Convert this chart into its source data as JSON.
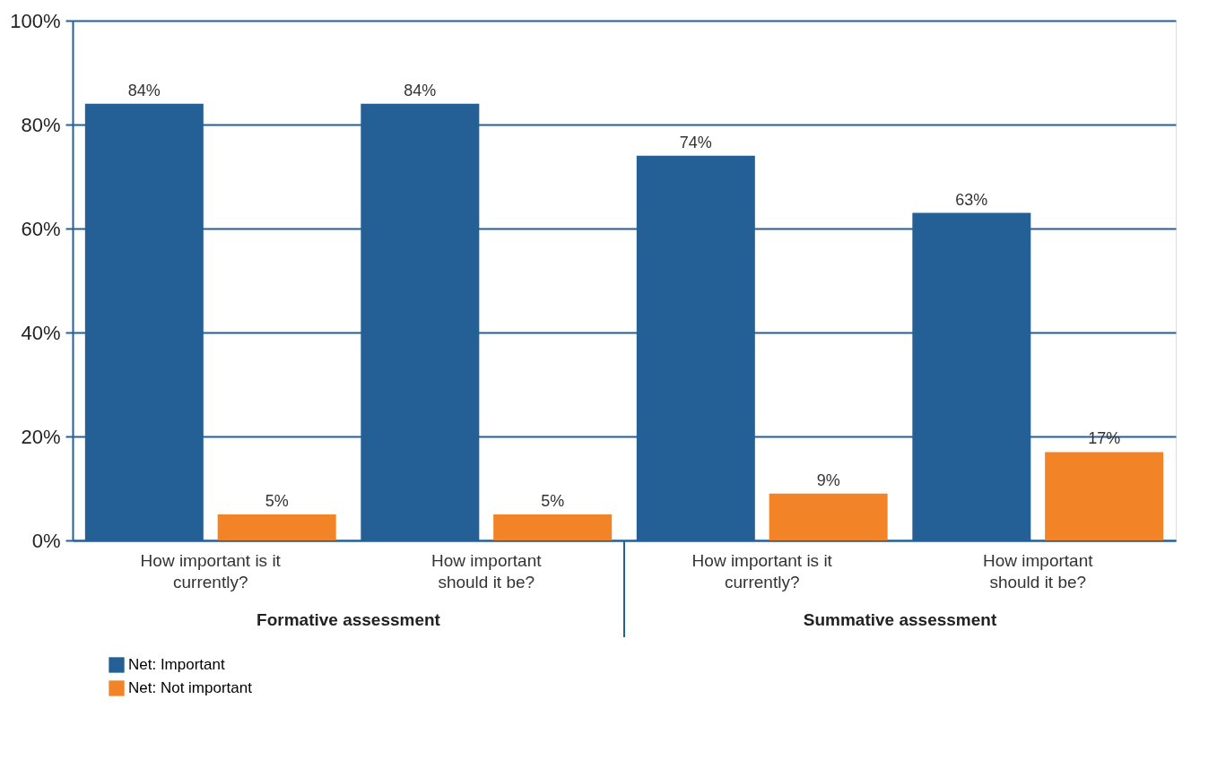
{
  "chart_data": {
    "type": "bar",
    "categories": [
      "How important is it currently?",
      "How important should it be?",
      "How important is it currently?",
      "How important should it be?"
    ],
    "series": [
      {
        "name": "Net: Important",
        "color": "#245f96",
        "values": [
          84,
          84,
          74,
          63
        ],
        "value_labels": [
          "84%",
          "84%",
          "74%",
          "63%"
        ]
      },
      {
        "name": "Net: Not important",
        "color": "#f28327",
        "values": [
          5,
          5,
          9,
          17
        ],
        "value_labels": [
          "5%",
          "5%",
          "9%",
          "17%"
        ]
      }
    ],
    "annotations": [
      "Formative assessment",
      "Summative assessment"
    ],
    "ylim": [
      0,
      100
    ],
    "yticks": [
      {
        "value": 0,
        "label": "0%"
      },
      {
        "value": 20,
        "label": "20%"
      },
      {
        "value": 40,
        "label": "40%"
      },
      {
        "value": 60,
        "label": "60%"
      },
      {
        "value": 80,
        "label": "80%"
      },
      {
        "value": 100,
        "label": "100%"
      }
    ],
    "grid": "y",
    "legend": "bottom left"
  }
}
